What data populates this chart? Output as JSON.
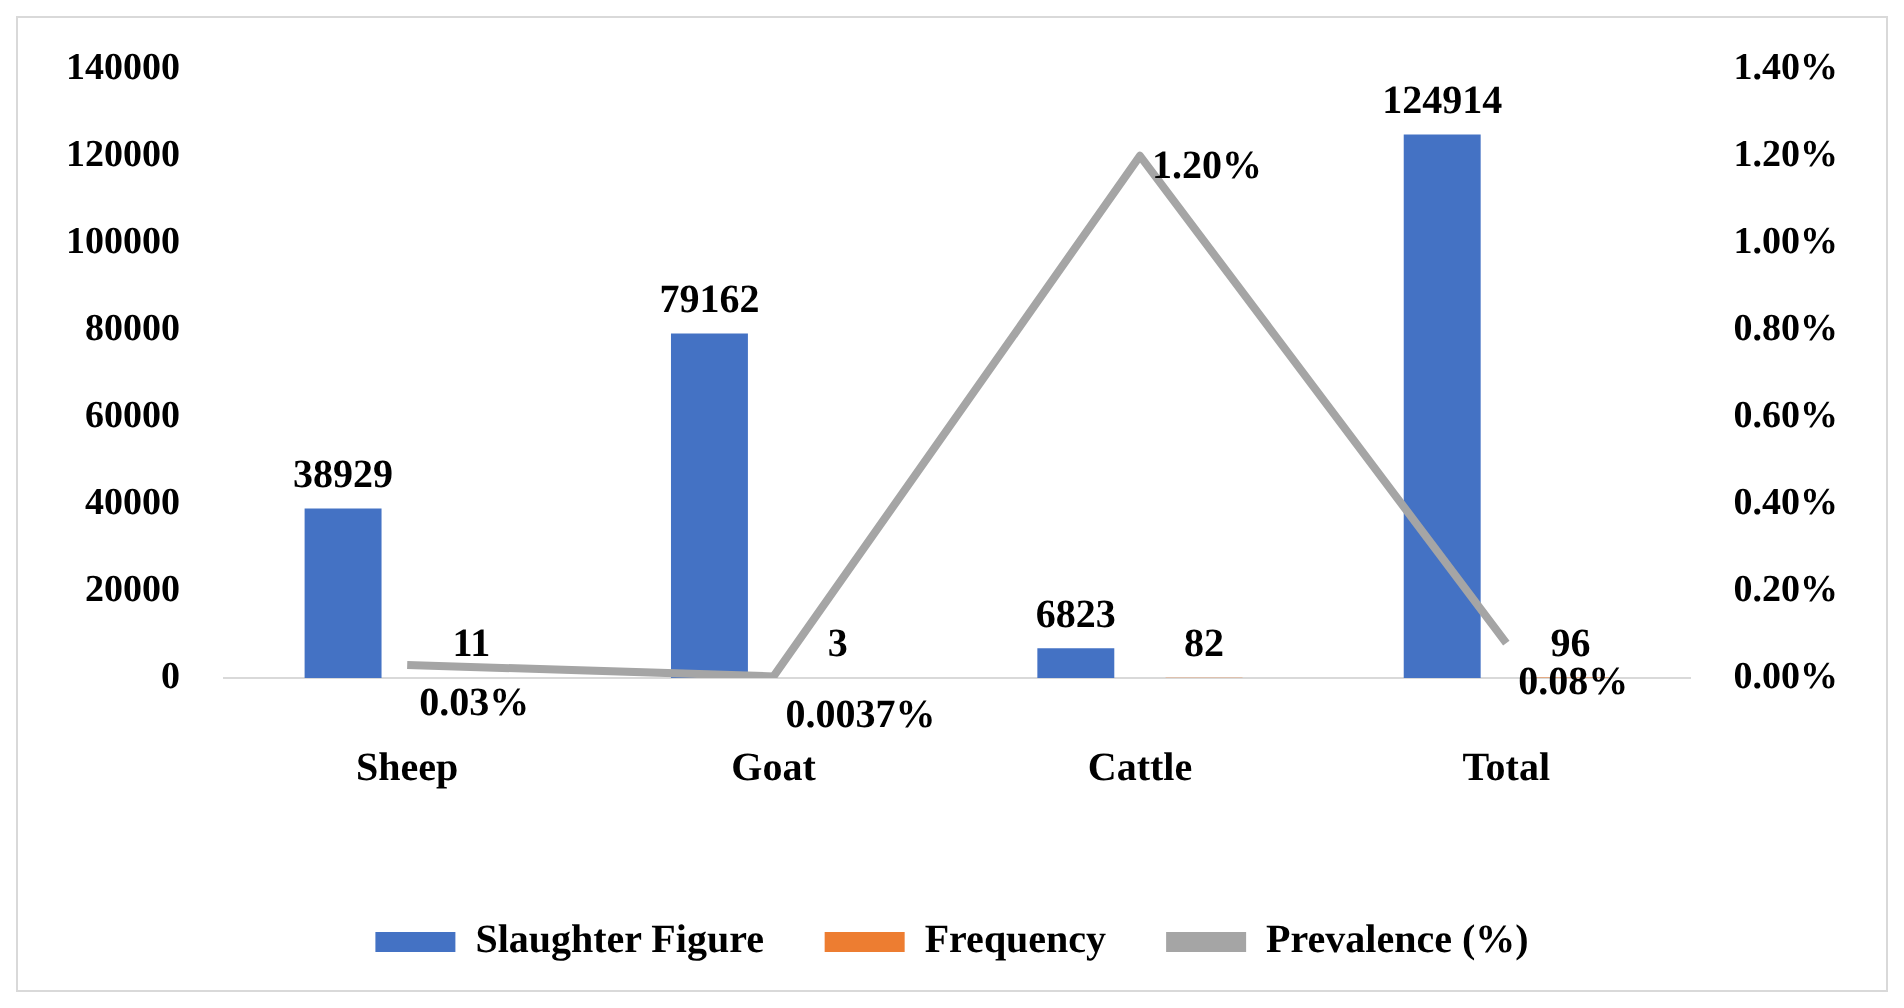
{
  "chart_data": {
    "type": "bar",
    "categories": [
      "Sheep",
      "Goat",
      "Cattle",
      "Total"
    ],
    "series": [
      {
        "name": "Slaughter Figure",
        "color": "#4472c4",
        "values": [
          38929,
          79162,
          6823,
          124914
        ],
        "value_labels": [
          "38929",
          "79162",
          "6823",
          "124914"
        ]
      },
      {
        "name": "Frequency",
        "color": "#ed7d31",
        "values": [
          11,
          3,
          82,
          96
        ],
        "value_labels": [
          "11",
          "3",
          "82",
          "96"
        ]
      },
      {
        "name": "Prevalence (%)",
        "type": "line",
        "axis": "y2",
        "color": "#a5a5a5",
        "values": [
          0.03,
          0.0037,
          1.2,
          0.08
        ],
        "value_labels": [
          "0.03%",
          "0.0037%",
          "1.20%",
          "0.08%"
        ],
        "marker": "none"
      }
    ],
    "ylim": [
      0,
      140000
    ],
    "yticks": [
      0,
      20000,
      40000,
      60000,
      80000,
      100000,
      120000,
      140000
    ],
    "y2lim": [
      0,
      1.4
    ],
    "y2ticks": [
      {
        "value": 0,
        "label": "0.00%"
      },
      {
        "value": 0.2,
        "label": "0.20%"
      },
      {
        "value": 0.4,
        "label": "0.40%"
      },
      {
        "value": 0.6,
        "label": "0.60%"
      },
      {
        "value": 0.8,
        "label": "0.80%"
      },
      {
        "value": 1.0,
        "label": "1.00%"
      },
      {
        "value": 1.2,
        "label": "1.20%"
      },
      {
        "value": 1.4,
        "label": "1.40%"
      }
    ],
    "grid": false,
    "legend": "bottom"
  }
}
